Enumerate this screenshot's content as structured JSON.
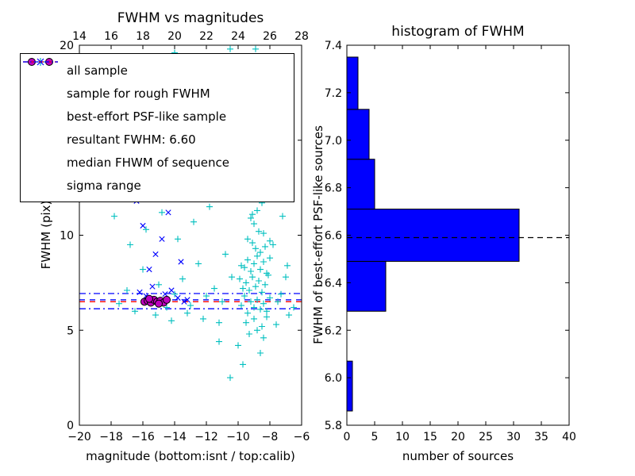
{
  "figure": {
    "background": "#ffffff"
  },
  "chart_data": [
    {
      "type": "scatter",
      "title": "FWHM vs magnitudes",
      "xlabel": "magnitude (bottom:isnt / top:calib)",
      "ylabel": "FWHM (pix)",
      "xlim": [
        -20,
        -6
      ],
      "ylim": [
        0,
        20
      ],
      "x_ticks_bottom": [
        -20,
        -18,
        -16,
        -14,
        -12,
        -10,
        -8,
        -6
      ],
      "x_ticks_top": [
        14,
        16,
        18,
        20,
        22,
        24,
        26,
        28
      ],
      "y_ticks": [
        0,
        5,
        10,
        15,
        20
      ],
      "series": [
        {
          "name": "all sample",
          "marker": "plus",
          "color": "#00bfbf",
          "points": [
            [
              -9.8,
              6.3
            ],
            [
              -9.6,
              6.8
            ],
            [
              -9.4,
              5.9
            ],
            [
              -9.2,
              6.5
            ],
            [
              -9.0,
              6.2
            ],
            [
              -8.8,
              6.6
            ],
            [
              -8.6,
              6.1
            ],
            [
              -8.4,
              6.4
            ],
            [
              -8.2,
              6.0
            ],
            [
              -8.0,
              6.7
            ],
            [
              -9.7,
              7.2
            ],
            [
              -9.5,
              7.5
            ],
            [
              -9.3,
              7.1
            ],
            [
              -9.1,
              7.8
            ],
            [
              -8.9,
              7.3
            ],
            [
              -8.7,
              7.6
            ],
            [
              -8.5,
              7.0
            ],
            [
              -8.3,
              7.4
            ],
            [
              -8.1,
              7.9
            ],
            [
              -9.9,
              7.7
            ],
            [
              -9.6,
              8.3
            ],
            [
              -9.4,
              8.7
            ],
            [
              -9.2,
              8.1
            ],
            [
              -9.0,
              8.5
            ],
            [
              -8.8,
              8.9
            ],
            [
              -8.6,
              8.2
            ],
            [
              -8.4,
              8.6
            ],
            [
              -8.2,
              8.0
            ],
            [
              -8.0,
              8.8
            ],
            [
              -9.8,
              8.4
            ],
            [
              -9.5,
              5.4
            ],
            [
              -9.0,
              5.6
            ],
            [
              -8.5,
              5.2
            ],
            [
              -8.2,
              5.7
            ],
            [
              -8.8,
              5.0
            ],
            [
              -9.3,
              4.8
            ],
            [
              -8.4,
              4.6
            ],
            [
              -8.9,
              9.3
            ],
            [
              -9.1,
              9.6
            ],
            [
              -8.6,
              9.1
            ],
            [
              -8.3,
              9.4
            ],
            [
              -9.4,
              9.8
            ],
            [
              -8.0,
              9.7
            ],
            [
              -8.7,
              10.2
            ],
            [
              -9.0,
              10.6
            ],
            [
              -8.4,
              10.1
            ],
            [
              -9.2,
              10.9
            ],
            [
              -8.8,
              11.3
            ],
            [
              -8.5,
              11.7
            ],
            [
              -9.1,
              11.1
            ],
            [
              -8.9,
              12.2
            ],
            [
              -8.6,
              12.6
            ],
            [
              -8.8,
              13.1
            ],
            [
              -8.5,
              13.5
            ],
            [
              -9.0,
              13.9
            ],
            [
              -8.7,
              14.4
            ],
            [
              -8.9,
              14.9
            ],
            [
              -8.6,
              15.3
            ],
            [
              -8.8,
              15.8
            ],
            [
              -8.5,
              16.2
            ],
            [
              -8.7,
              16.8
            ],
            [
              -8.9,
              17.3
            ],
            [
              -8.6,
              17.9
            ],
            [
              -8.8,
              18.4
            ],
            [
              -8.5,
              18.9
            ],
            [
              -8.7,
              19.4
            ],
            [
              -8.9,
              19.8
            ],
            [
              -8.4,
              14.0
            ],
            [
              -9.1,
              16.5
            ],
            [
              -8.3,
              12.9
            ],
            [
              -17.5,
              6.4
            ],
            [
              -17.0,
              7.1
            ],
            [
              -16.5,
              6.0
            ],
            [
              -16.0,
              8.2
            ],
            [
              -15.5,
              6.6
            ],
            [
              -15.0,
              7.4
            ],
            [
              -14.5,
              6.2
            ],
            [
              -14.0,
              6.9
            ],
            [
              -13.5,
              7.7
            ],
            [
              -13.0,
              6.3
            ],
            [
              -12.5,
              8.5
            ],
            [
              -12.0,
              6.8
            ],
            [
              -11.5,
              7.2
            ],
            [
              -11.0,
              6.5
            ],
            [
              -10.8,
              9.0
            ],
            [
              -16.8,
              9.5
            ],
            [
              -15.8,
              10.3
            ],
            [
              -14.8,
              11.2
            ],
            [
              -13.8,
              9.8
            ],
            [
              -12.8,
              10.7
            ],
            [
              -11.8,
              11.5
            ],
            [
              -10.6,
              12.2
            ],
            [
              -16.2,
              12.8
            ],
            [
              -15.2,
              5.8
            ],
            [
              -14.2,
              5.5
            ],
            [
              -13.2,
              5.9
            ],
            [
              -12.2,
              5.6
            ],
            [
              -11.2,
              5.4
            ],
            [
              -17.8,
              11.0
            ],
            [
              -10.4,
              7.8
            ],
            [
              -16.5,
              14.5
            ],
            [
              -15.5,
              15.2
            ],
            [
              -14.5,
              16.0
            ],
            [
              -13.5,
              14.8
            ],
            [
              -12.5,
              15.6
            ],
            [
              -11.5,
              16.4
            ],
            [
              -10.5,
              17.2
            ],
            [
              -16.0,
              18.0
            ],
            [
              -13.0,
              18.8
            ],
            [
              -11.0,
              19.2
            ],
            [
              -12.0,
              13.5
            ],
            [
              -14.0,
              19.6
            ],
            [
              -10.5,
              19.8
            ],
            [
              -10.5,
              2.5
            ],
            [
              -9.7,
              3.2
            ],
            [
              -10.0,
              4.2
            ],
            [
              -8.6,
              3.8
            ],
            [
              -11.2,
              4.4
            ],
            [
              -7.5,
              6.5
            ],
            [
              -7.0,
              7.8
            ],
            [
              -6.5,
              6.2
            ],
            [
              -7.8,
              9.5
            ],
            [
              -7.2,
              11.0
            ],
            [
              -6.8,
              5.8
            ],
            [
              -7.6,
              5.3
            ],
            [
              -7.3,
              6.9
            ],
            [
              -6.9,
              8.4
            ]
          ]
        },
        {
          "name": "sample for rough FWHM",
          "marker": "x",
          "color": "#0000ff",
          "points": [
            [
              -16.2,
              7.0
            ],
            [
              -15.8,
              6.8
            ],
            [
              -15.4,
              7.3
            ],
            [
              -15.0,
              6.6
            ],
            [
              -14.6,
              6.9
            ],
            [
              -14.2,
              7.1
            ],
            [
              -13.8,
              6.7
            ],
            [
              -13.4,
              6.5
            ],
            [
              -15.6,
              8.2
            ],
            [
              -15.2,
              9.0
            ],
            [
              -14.8,
              9.8
            ],
            [
              -16.0,
              10.5
            ],
            [
              -14.4,
              11.2
            ],
            [
              -13.6,
              8.6
            ],
            [
              -13.2,
              6.6
            ],
            [
              -16.4,
              11.8
            ]
          ]
        },
        {
          "name": "best-effort PSF-like sample",
          "marker": "circle",
          "color": "#bf00bf",
          "edge": "#000000",
          "points": [
            [
              -15.9,
              6.5
            ],
            [
              -15.7,
              6.55
            ],
            [
              -15.5,
              6.45
            ],
            [
              -15.3,
              6.6
            ],
            [
              -15.1,
              6.5
            ],
            [
              -14.9,
              6.55
            ],
            [
              -14.7,
              6.45
            ],
            [
              -14.5,
              6.6
            ],
            [
              -15.6,
              6.65
            ],
            [
              -15.0,
              6.4
            ]
          ]
        }
      ],
      "lines": [
        {
          "name": "resultant FWHM",
          "y": 6.6,
          "color": "#0000ff",
          "style": "dashed"
        },
        {
          "name": "median FHWM of sequence",
          "y": 6.5,
          "color": "#ff0000",
          "style": "dashed"
        },
        {
          "name": "sigma range upper",
          "y": 6.93,
          "color": "#0000ff",
          "style": "dashdot"
        },
        {
          "name": "sigma range lower",
          "y": 6.13,
          "color": "#0000ff",
          "style": "dashdot"
        }
      ],
      "legend": [
        {
          "label": "all sample",
          "marker": "plus",
          "color": "#00bfbf"
        },
        {
          "label": "sample for rough FWHM",
          "marker": "x",
          "color": "#0000ff"
        },
        {
          "label": "best-effort PSF-like sample",
          "marker": "circle2",
          "color": "#bf00bf"
        },
        {
          "label": "resultant FWHM: 6.60",
          "marker": "dashed",
          "color": "#0000ff"
        },
        {
          "label": "median FHWM of sequence",
          "marker": "dashed",
          "color": "#ff0000"
        },
        {
          "label": "sigma range",
          "marker": "dashdot",
          "color": "#0000ff"
        }
      ]
    },
    {
      "type": "bar",
      "orientation": "horizontal",
      "title": "histogram of FWHM",
      "xlabel": "number of sources",
      "ylabel": "FWHM of best-effort PSF-like sources",
      "xlim": [
        0,
        40
      ],
      "ylim": [
        5.8,
        7.4
      ],
      "x_ticks": [
        0,
        5,
        10,
        15,
        20,
        25,
        30,
        35,
        40
      ],
      "y_ticks": [
        5.8,
        6.0,
        6.2,
        6.4,
        6.6,
        6.8,
        7.0,
        7.2,
        7.4
      ],
      "bin_edges": [
        5.86,
        6.07,
        6.28,
        6.49,
        6.71,
        6.92,
        7.13,
        7.35
      ],
      "values": [
        1,
        0,
        7,
        31,
        5,
        4,
        2
      ],
      "bar_color": "#0000ff",
      "bar_edge": "#000000",
      "dashed_line_y": 6.59,
      "dashed_line_color": "#000000"
    }
  ]
}
